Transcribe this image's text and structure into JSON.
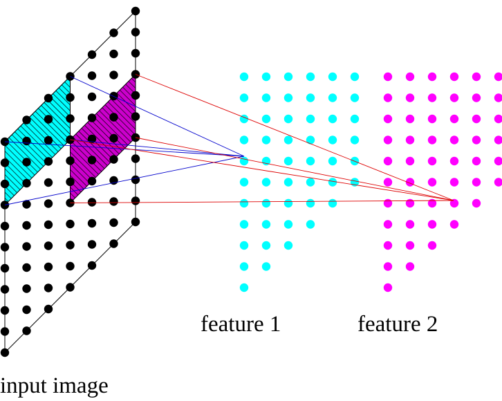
{
  "labels": {
    "input": "input image",
    "feature1": "feature 1",
    "feature2": "feature 2"
  },
  "colors": {
    "background": "#ffffff",
    "input_dots": "#000000",
    "feature1_dots": "#00ffff",
    "feature2_dots": "#ff00ff",
    "patch1_fill": "#00ffff",
    "patch2_fill": "#cc00cc",
    "hatch": "#000000",
    "connections1": "#0000cc",
    "connections2": "#dd0000",
    "frame": "#000000"
  },
  "grid": {
    "input_columns": 7,
    "input_rows": 11,
    "feature_columns": 6,
    "feature_rows": 11
  },
  "icons": {
    "patch_pattern": "diagonal-hatch"
  }
}
